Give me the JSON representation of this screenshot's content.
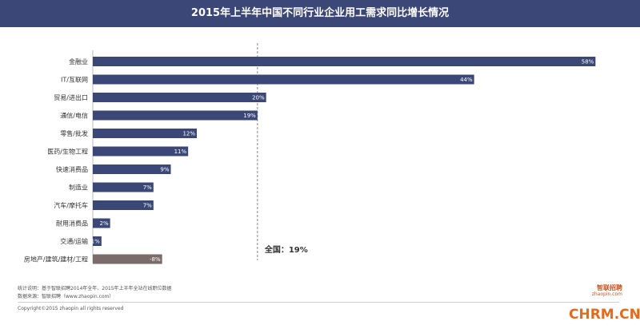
{
  "header": {
    "title": "2015年上半年中国不同行业企业用工需求同比增长情况"
  },
  "chart_data": {
    "type": "bar",
    "orientation": "horizontal",
    "categories": [
      "金融业",
      "IT/互联网",
      "贸易/进出口",
      "通信/电信",
      "零售/批发",
      "医药/生物工程",
      "快速消费品",
      "制造业",
      "汽车/摩托车",
      "耐用消费品",
      "交通/运输",
      "房地产/建筑/建材/工程"
    ],
    "values": [
      58,
      44,
      20,
      19,
      12,
      11,
      9,
      7,
      7,
      2,
      1,
      -8
    ],
    "value_labels": [
      "58%",
      "44%",
      "20%",
      "19%",
      "12%",
      "11%",
      "9%",
      "7%",
      "7%",
      "2%",
      "1%",
      "-8%"
    ],
    "xlim": [
      0,
      60
    ],
    "reference_line": {
      "value": 19,
      "label": "全国：19%"
    },
    "colors": {
      "positive": "#3b4777",
      "negative": "#7a6c6a",
      "reference": "#888888"
    },
    "legend": "none",
    "grid": false
  },
  "footer": {
    "note1": "统计说明：基于智联招聘2014年全年、2015年上半年全站在线职位数据",
    "note2": "数据来源：智联招聘（www.zhaopin.com）",
    "copyright": "Copyright©2015 zhaopin all rights reserved",
    "logo_text": "智联招聘",
    "logo_sub": "zhaopin.com",
    "watermark": "CHRM.CN"
  }
}
